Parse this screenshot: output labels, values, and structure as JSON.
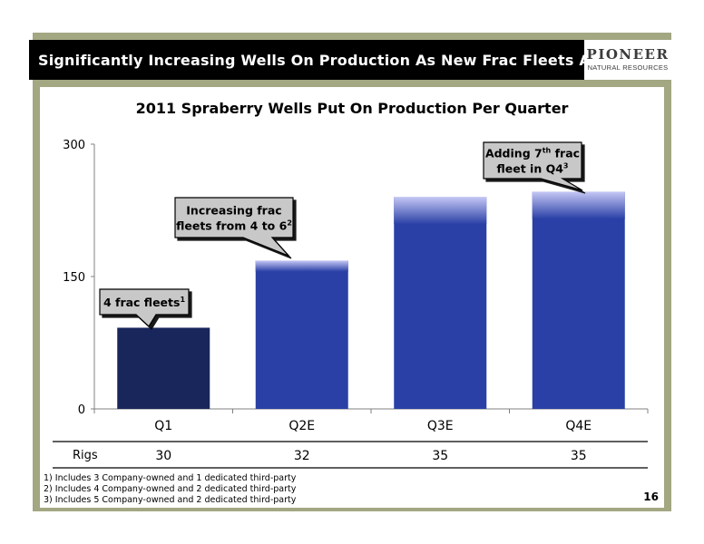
{
  "header": {
    "title": "Significantly Increasing Wells On Production As New Frac Fleets Added"
  },
  "logo": {
    "name": "PIONEER",
    "subtitle": "NATURAL RESOURCES"
  },
  "chart_data": {
    "type": "bar",
    "title": "2011 Spraberry Wells Put On Production Per Quarter",
    "categories": [
      "Q1",
      "Q2E",
      "Q3E",
      "Q4E"
    ],
    "values": [
      92,
      168,
      240,
      246
    ],
    "ylim": [
      0,
      300
    ],
    "yticks": [
      0,
      150,
      300
    ],
    "bar_colors": [
      "#18265c",
      "#2a40a6",
      "#2a40a6",
      "#2a40a6"
    ],
    "gradient_top_color": "#c4c6f4",
    "grid": false,
    "callouts": [
      {
        "lines": [
          "4 frac fleets"
        ],
        "sup": "1"
      },
      {
        "lines": [
          "Increasing frac",
          "fleets from 4 to 6"
        ],
        "sup": "2"
      },
      {
        "lines": [
          "Adding 7",
          "fleet in Q4"
        ],
        "inline_sup": "th",
        "line1_tail": " frac",
        "sup": "3"
      }
    ]
  },
  "rigs": {
    "label": "Rigs",
    "values": [
      "30",
      "32",
      "35",
      "35"
    ]
  },
  "footnotes": [
    "1) Includes 3 Company-owned and 1 dedicated third-party",
    "2) Includes 4 Company-owned and 2 dedicated third-party",
    "3) Includes 5 Company-owned and 2 dedicated third-party"
  ],
  "page_number": "16"
}
